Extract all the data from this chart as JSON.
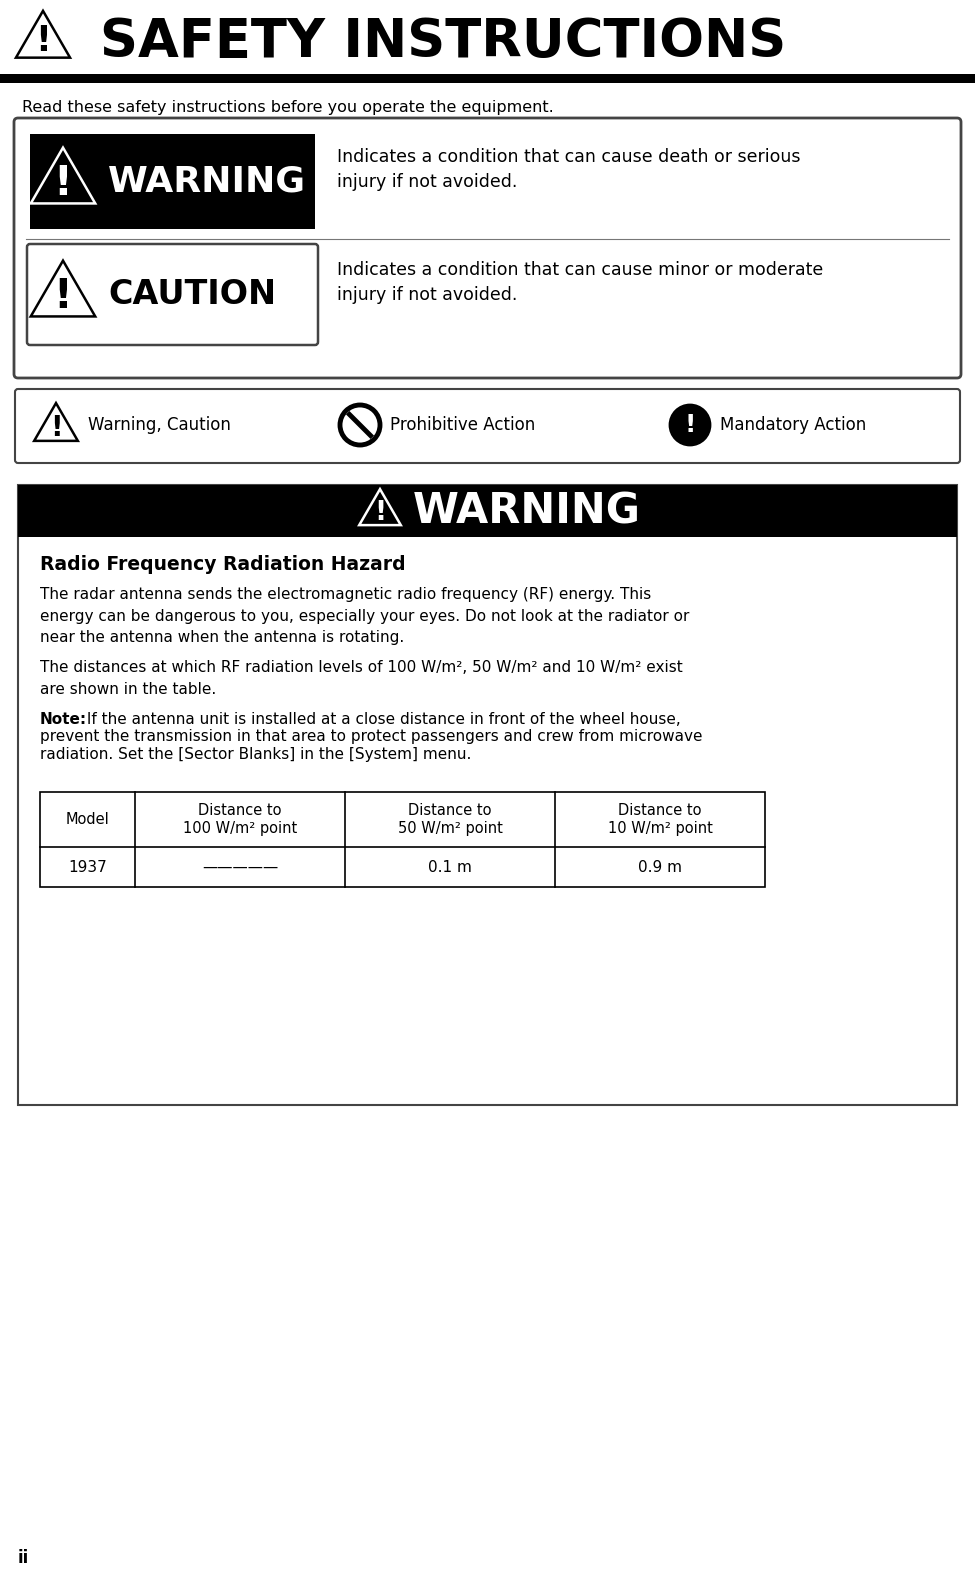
{
  "page_title": "SAFETY INSTRUCTIONS",
  "page_number": "ii",
  "intro_text": "Read these safety instructions before you operate the equipment.",
  "warning_label": "WARNING",
  "warning_desc": "Indicates a condition that can cause death or serious\ninjury if not avoided.",
  "caution_label": "CAUTION",
  "caution_desc": "Indicates a condition that can cause minor or moderate\ninjury if not avoided.",
  "icon_warning_caution": "Warning, Caution",
  "icon_prohibitive": "Prohibitive Action",
  "icon_mandatory": "Mandatory Action",
  "section_warning_title": "WARNING",
  "rf_title": "Radio Frequency Radiation Hazard",
  "rf_para1": "The radar antenna sends the electromagnetic radio frequency (RF) energy. This\nenergy can be dangerous to you, especially your eyes. Do not look at the radiator or\nnear the antenna when the antenna is rotating.",
  "rf_para2": "The distances at which RF radiation levels of 100 W/m², 50 W/m² and 10 W/m² exist\nare shown in the table.",
  "rf_note_bold": "Note:",
  "rf_note_rest": " If the antenna unit is installed at a close distance in front of the wheel house,\nprevent the transmission in that area to protect passengers and crew from microwave\nradiation. Set the [Sector Blanks] in the [System] menu.",
  "table_headers": [
    "Model",
    "Distance to\n100 W/m² point",
    "Distance to\n50 W/m² point",
    "Distance to\n10 W/m² point"
  ],
  "table_row_model": "1937",
  "table_row_100": "—————",
  "table_row_50": "0.1 m",
  "table_row_10": "0.9 m",
  "bg_color": "#ffffff",
  "black": "#000000"
}
